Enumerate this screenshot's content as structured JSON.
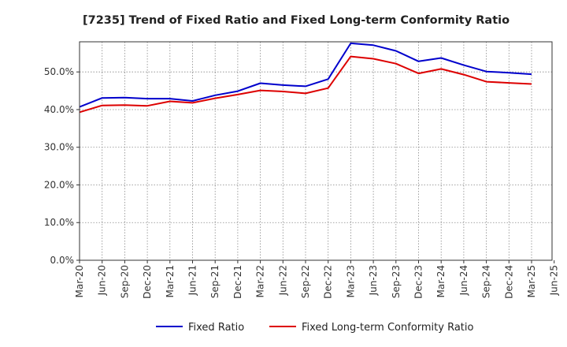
{
  "chart_data": {
    "type": "line",
    "title": "[7235]  Trend of Fixed Ratio and Fixed Long-term Conformity Ratio",
    "xlabel": "",
    "ylabel": "",
    "ylim": [
      0,
      58
    ],
    "y_ticks": [
      0,
      10,
      20,
      30,
      40,
      50
    ],
    "y_tick_labels": [
      "0.0%",
      "10.0%",
      "20.0%",
      "30.0%",
      "40.0%",
      "50.0%"
    ],
    "x_tick_labels": [
      "Mar-20",
      "Jun-20",
      "Sep-20",
      "Dec-20",
      "Mar-21",
      "Jun-21",
      "Sep-21",
      "Dec-21",
      "Mar-22",
      "Jun-22",
      "Sep-22",
      "Dec-22",
      "Mar-23",
      "Jun-23",
      "Sep-23",
      "Dec-23",
      "Mar-24",
      "Jun-24",
      "Sep-24",
      "Dec-24",
      "Mar-25",
      "Jun-25"
    ],
    "grid": true,
    "legend_position": "bottom",
    "categories": [
      "Mar-20",
      "Jun-20",
      "Sep-20",
      "Dec-20",
      "Mar-21",
      "Jun-21",
      "Sep-21",
      "Dec-21",
      "Mar-22",
      "Jun-22",
      "Sep-22",
      "Dec-22",
      "Mar-23",
      "Jun-23",
      "Sep-23",
      "Dec-23",
      "Mar-24",
      "Jun-24",
      "Sep-24",
      "Dec-24",
      "Mar-25"
    ],
    "series": [
      {
        "name": "Fixed Ratio",
        "color": "#0000cc",
        "values": [
          40.7,
          43.1,
          43.2,
          42.9,
          42.9,
          42.3,
          43.8,
          44.9,
          47.0,
          46.5,
          46.2,
          48.1,
          57.6,
          57.1,
          55.6,
          52.8,
          53.7,
          51.8,
          50.1,
          49.8,
          49.4
        ]
      },
      {
        "name": "Fixed Long-term Conformity Ratio",
        "color": "#dd0000",
        "values": [
          39.3,
          41.1,
          41.2,
          41.0,
          42.2,
          41.8,
          43.0,
          44.0,
          45.1,
          44.8,
          44.3,
          45.7,
          54.1,
          53.5,
          52.2,
          49.6,
          50.8,
          49.3,
          47.4,
          47.1,
          46.8
        ]
      }
    ]
  }
}
